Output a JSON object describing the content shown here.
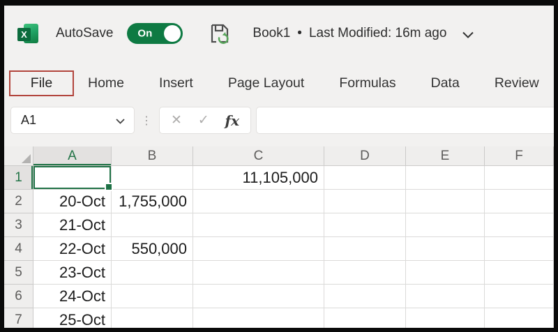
{
  "titlebar": {
    "app_icon_letter": "X",
    "autosave_label": "AutoSave",
    "autosave_state": "On",
    "workbook_title": "Book1",
    "separator": "•",
    "last_modified": "Last Modified: 16m ago"
  },
  "menu": {
    "items": [
      {
        "label": "File",
        "highlighted": true
      },
      {
        "label": "Home",
        "highlighted": false
      },
      {
        "label": "Insert",
        "highlighted": false
      },
      {
        "label": "Page Layout",
        "highlighted": false
      },
      {
        "label": "Formulas",
        "highlighted": false
      },
      {
        "label": "Data",
        "highlighted": false
      },
      {
        "label": "Review",
        "highlighted": false
      }
    ]
  },
  "formula_bar": {
    "name_box_value": "A1",
    "separator_icon": "⋮",
    "cancel_icon": "✕",
    "enter_icon": "✓",
    "function_icon": "fx",
    "formula_value": ""
  },
  "grid": {
    "selected_cell": {
      "col": "A",
      "row": "1"
    },
    "column_headers": [
      "A",
      "B",
      "C",
      "D",
      "E",
      "F"
    ],
    "row_headers": [
      "1",
      "2",
      "3",
      "4",
      "5",
      "6",
      "7"
    ],
    "cells": [
      {
        "col": "C",
        "row": "1",
        "value": "11,105,000"
      },
      {
        "col": "A",
        "row": "2",
        "value": "20-Oct"
      },
      {
        "col": "B",
        "row": "2",
        "value": "1,755,000"
      },
      {
        "col": "A",
        "row": "3",
        "value": "21-Oct"
      },
      {
        "col": "A",
        "row": "4",
        "value": "22-Oct"
      },
      {
        "col": "B",
        "row": "4",
        "value": "550,000"
      },
      {
        "col": "A",
        "row": "5",
        "value": "23-Oct"
      },
      {
        "col": "A",
        "row": "6",
        "value": "24-Oct"
      },
      {
        "col": "A",
        "row": "7",
        "value": "25-Oct"
      }
    ]
  },
  "colors": {
    "excel_green": "#107c41",
    "selection_green": "#1e7145",
    "header_accent_green": "#217346",
    "file_highlight_red": "#b2443c",
    "toggle_green": "#0e7a43",
    "background_gray": "#f2f1f0"
  }
}
